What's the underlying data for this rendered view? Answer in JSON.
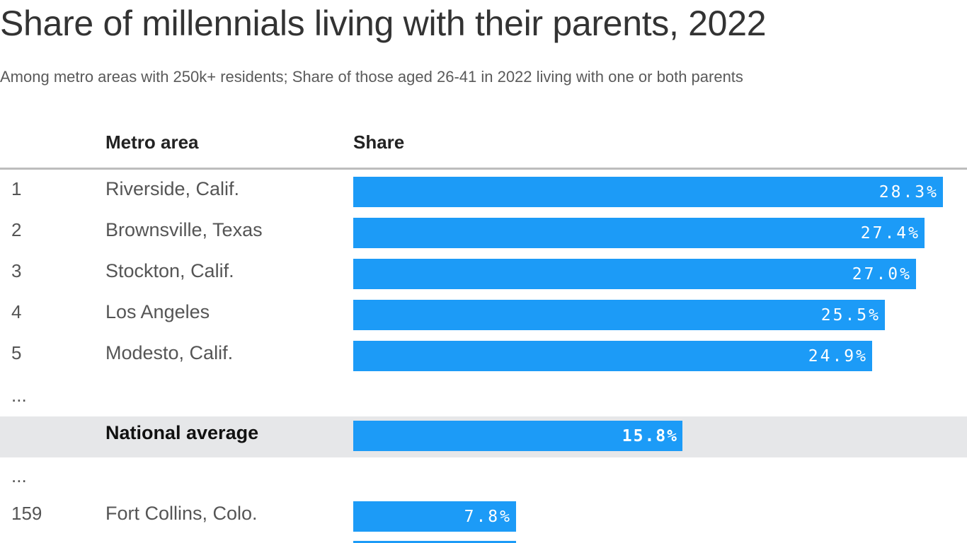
{
  "title": "Share of millennials living with their parents, 2022",
  "subtitle": "Among metro areas with 250k+ residents; Share of those aged 26-41 in 2022 living with one or both parents",
  "columns": {
    "metro": "Metro area",
    "share": "Share"
  },
  "ellipsis": "...",
  "colors": {
    "bar": "#1c9bf7",
    "highlight_row": "#e6e7e9"
  },
  "chart_data": {
    "type": "bar",
    "orientation": "horizontal",
    "xlim": [
      0,
      28.3
    ],
    "rows": [
      {
        "rank": "1",
        "metro": "Riverside, Calif.",
        "value": 28.3,
        "label": "28.3%"
      },
      {
        "rank": "2",
        "metro": "Brownsville, Texas",
        "value": 27.4,
        "label": "27.4%"
      },
      {
        "rank": "3",
        "metro": "Stockton, Calif.",
        "value": 27.0,
        "label": "27.0%"
      },
      {
        "rank": "4",
        "metro": "Los Angeles",
        "value": 25.5,
        "label": "25.5%"
      },
      {
        "rank": "5",
        "metro": "Modesto, Calif.",
        "value": 24.9,
        "label": "24.9%"
      },
      {
        "rank": "",
        "metro": "National average",
        "value": 15.8,
        "label": "15.8%",
        "highlight": true
      },
      {
        "rank": "159",
        "metro": "Fort Collins, Colo.",
        "value": 7.8,
        "label": "7.8%"
      }
    ],
    "partially_visible_next_value": 7.8
  }
}
